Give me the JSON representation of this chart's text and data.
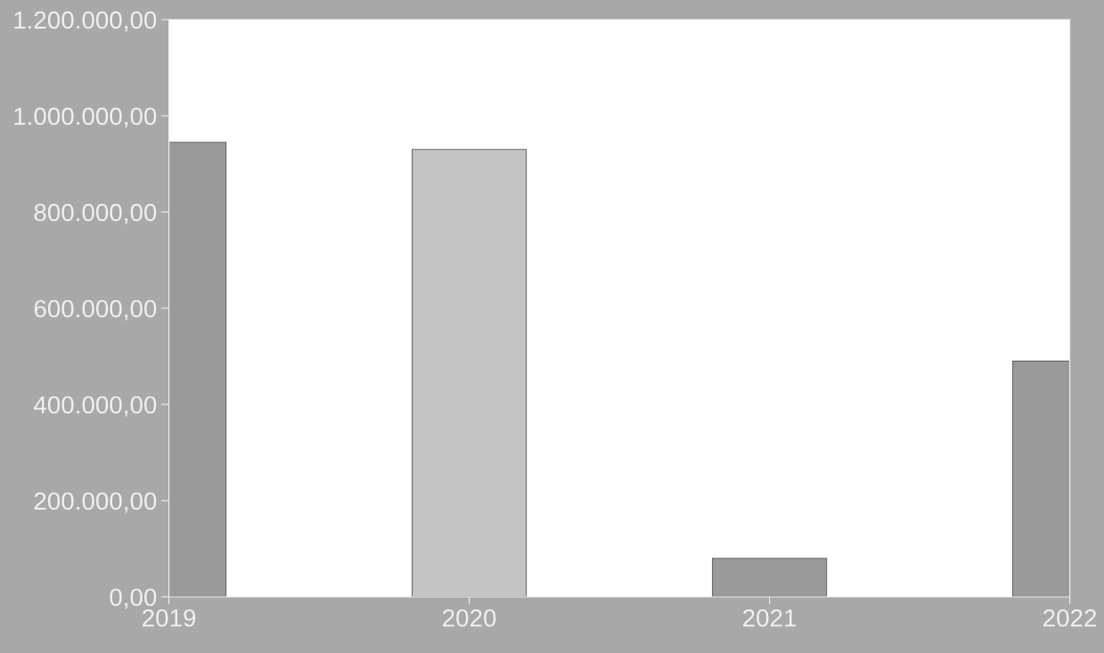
{
  "chart_data": {
    "type": "bar",
    "x": [
      2019,
      2020,
      2021,
      2022
    ],
    "values": [
      945000,
      930000,
      80000,
      490000
    ],
    "colors": [
      "#9a9a9a",
      "#c4c4c4",
      "#9a9a9a",
      "#9a9a9a"
    ],
    "xlim": [
      2019,
      2022
    ],
    "xticks": [
      2019,
      2020,
      2021,
      2022
    ],
    "ylim": [
      0,
      1200000
    ],
    "yticks": [
      {
        "value": 0,
        "label": "0,00"
      },
      {
        "value": 200000,
        "label": "200.000,00"
      },
      {
        "value": 400000,
        "label": "400.000,00"
      },
      {
        "value": 600000,
        "label": "600.000,00"
      },
      {
        "value": 800000,
        "label": "800.000,00"
      },
      {
        "value": 1000000,
        "label": "1.000.000,00"
      },
      {
        "value": 1200000,
        "label": "1.200.000,00"
      }
    ]
  }
}
